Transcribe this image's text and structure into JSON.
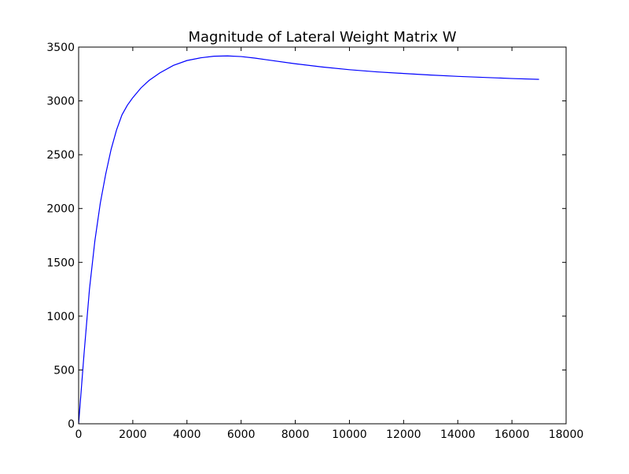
{
  "figure": {
    "title": "Magnitude of Lateral Weight Matrix W"
  },
  "colors": {
    "background": "#ffffff",
    "axes": "#000000",
    "line": "#0000ff"
  },
  "chart_data": {
    "type": "line",
    "title": "Magnitude of Lateral Weight Matrix W",
    "xlabel": "",
    "ylabel": "",
    "xlim": [
      0,
      18000
    ],
    "ylim": [
      0,
      3500
    ],
    "x_ticks": [
      0,
      2000,
      4000,
      6000,
      8000,
      10000,
      12000,
      14000,
      16000,
      18000
    ],
    "y_ticks": [
      0,
      500,
      1000,
      1500,
      2000,
      2500,
      3000,
      3500
    ],
    "grid": false,
    "legend": "none",
    "series": [
      {
        "color": "#0000ff",
        "x": [
          0,
          200,
          400,
          600,
          800,
          1000,
          1200,
          1400,
          1600,
          1800,
          2000,
          2300,
          2600,
          3000,
          3500,
          4000,
          4500,
          5000,
          5500,
          6000,
          6500,
          7000,
          8000,
          9000,
          10000,
          11000,
          12000,
          13000,
          14000,
          15000,
          16000,
          17000
        ],
        "y": [
          0,
          650,
          1250,
          1700,
          2050,
          2320,
          2550,
          2730,
          2870,
          2960,
          3030,
          3120,
          3190,
          3260,
          3330,
          3375,
          3400,
          3415,
          3418,
          3412,
          3398,
          3380,
          3345,
          3315,
          3290,
          3270,
          3255,
          3240,
          3228,
          3218,
          3208,
          3200
        ]
      }
    ]
  }
}
